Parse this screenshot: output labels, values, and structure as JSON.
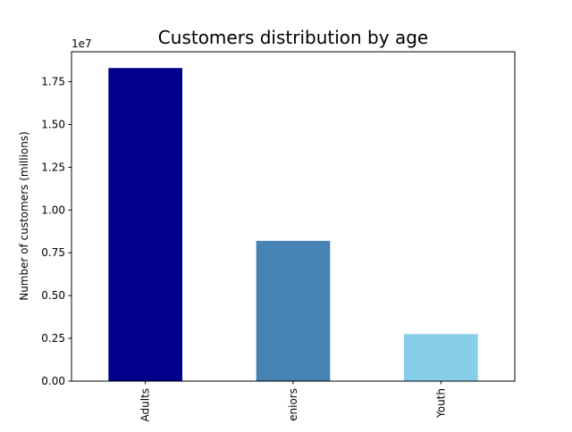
{
  "chart_data": {
    "type": "bar",
    "title": "Customers distribution by age",
    "xlabel": "",
    "ylabel": "Number of customers (millions)",
    "categories": [
      "Adults",
      "eniors",
      "Youth"
    ],
    "values": [
      18300000,
      8200000,
      2750000
    ],
    "colors": [
      "#00008b",
      "#4682b4",
      "#87ceeb"
    ],
    "ylim": [
      0,
      19250000
    ],
    "yticks": [
      0,
      2500000,
      5000000,
      7500000,
      10000000,
      12500000,
      15000000,
      17500000
    ],
    "ytick_labels": [
      "0.00",
      "0.25",
      "0.50",
      "0.75",
      "1.00",
      "1.25",
      "1.50",
      "1.75"
    ],
    "y_offset_label": "1e7",
    "grid": false,
    "legend": "none"
  }
}
